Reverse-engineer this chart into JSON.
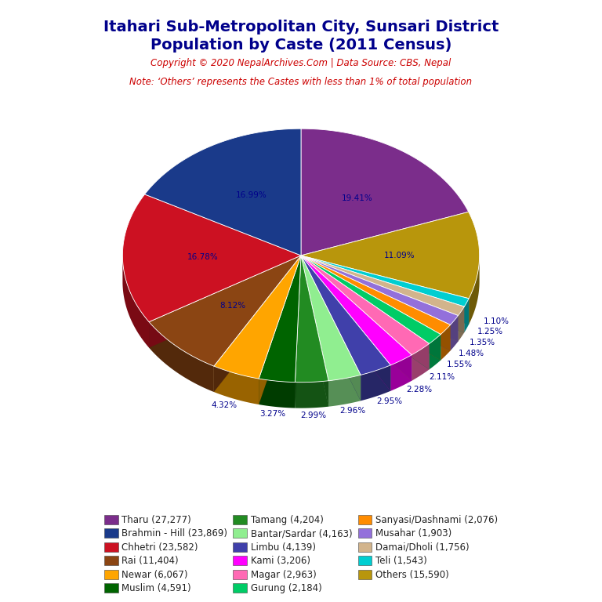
{
  "title_line1": "Itahari Sub-Metropolitan City, Sunsari District",
  "title_line2": "Population by Caste (2011 Census)",
  "copyright": "Copyright © 2020 NepalArchives.Com | Data Source: CBS, Nepal",
  "note": "Note: ‘Others’ represents the Castes with less than 1% of total population",
  "title_color": "#00008B",
  "copyright_color": "#CC0000",
  "note_color": "#CC0000",
  "label_color": "#00008B",
  "bg_color": "#FFFFFF",
  "slices_ordered": [
    {
      "label": "Tharu (27,277)",
      "value": 27277,
      "color": "#7B2D8B",
      "pct": "19.41%"
    },
    {
      "label": "Others (15,590)",
      "value": 15590,
      "color": "#B8960C",
      "pct": "11.09%"
    },
    {
      "label": "Teli (1,543)",
      "value": 1543,
      "color": "#00CED1",
      "pct": "1.10%"
    },
    {
      "label": "Damai/Dholi (1,756)",
      "value": 1756,
      "color": "#D2B48C",
      "pct": "1.25%"
    },
    {
      "label": "Musahar (1,903)",
      "value": 1903,
      "color": "#9370DB",
      "pct": "1.35%"
    },
    {
      "label": "Sanyasi/Dashnami (2,076)",
      "value": 2076,
      "color": "#FF8C00",
      "pct": "1.48%"
    },
    {
      "label": "Gurung (2,184)",
      "value": 2184,
      "color": "#00CC66",
      "pct": "1.55%"
    },
    {
      "label": "Magar (2,963)",
      "value": 2963,
      "color": "#FF69B4",
      "pct": "2.11%"
    },
    {
      "label": "Kami (3,206)",
      "value": 3206,
      "color": "#FF00FF",
      "pct": "2.28%"
    },
    {
      "label": "Limbu (4,139)",
      "value": 4139,
      "color": "#4040AA",
      "pct": "2.95%"
    },
    {
      "label": "Bantar/Sardar (4,163)",
      "value": 4163,
      "color": "#90EE90",
      "pct": "2.96%"
    },
    {
      "label": "Tamang (4,204)",
      "value": 4204,
      "color": "#228B22",
      "pct": "2.99%"
    },
    {
      "label": "Muslim (4,591)",
      "value": 4591,
      "color": "#006400",
      "pct": "3.27%"
    },
    {
      "label": "Newar (6,067)",
      "value": 6067,
      "color": "#FFA500",
      "pct": "4.32%"
    },
    {
      "label": "Rai (11,404)",
      "value": 11404,
      "color": "#8B4513",
      "pct": "8.12%"
    },
    {
      "label": "Chhetri (23,582)",
      "value": 23582,
      "color": "#CC1122",
      "pct": "16.78%"
    },
    {
      "label": "Brahmin - Hill (23,869)",
      "value": 23869,
      "color": "#1A3A8A",
      "pct": "16.99%"
    }
  ],
  "legend_order": [
    {
      "label": "Tharu (27,277)",
      "color": "#7B2D8B"
    },
    {
      "label": "Brahmin - Hill (23,869)",
      "color": "#1A3A8A"
    },
    {
      "label": "Chhetri (23,582)",
      "color": "#CC1122"
    },
    {
      "label": "Rai (11,404)",
      "color": "#8B4513"
    },
    {
      "label": "Newar (6,067)",
      "color": "#FFA500"
    },
    {
      "label": "Muslim (4,591)",
      "color": "#006400"
    },
    {
      "label": "Tamang (4,204)",
      "color": "#228B22"
    },
    {
      "label": "Bantar/Sardar (4,163)",
      "color": "#90EE90"
    },
    {
      "label": "Limbu (4,139)",
      "color": "#4040AA"
    },
    {
      "label": "Kami (3,206)",
      "color": "#FF00FF"
    },
    {
      "label": "Magar (2,963)",
      "color": "#FF69B4"
    },
    {
      "label": "Gurung (2,184)",
      "color": "#00CC66"
    },
    {
      "label": "Sanyasi/Dashnami (2,076)",
      "color": "#FF8C00"
    },
    {
      "label": "Musahar (1,903)",
      "color": "#9370DB"
    },
    {
      "label": "Damai/Dholi (1,756)",
      "color": "#D2B48C"
    },
    {
      "label": "Teli (1,543)",
      "color": "#00CED1"
    },
    {
      "label": "Others (15,590)",
      "color": "#B8960C"
    }
  ]
}
